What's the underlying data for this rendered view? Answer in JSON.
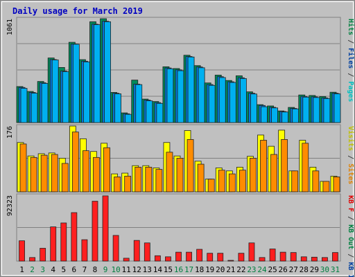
{
  "chart_data": [
    {
      "type": "bar",
      "title": "Daily usage for March 2019",
      "categories": [
        "1",
        "2",
        "3",
        "4",
        "5",
        "6",
        "7",
        "8",
        "9",
        "10",
        "11",
        "12",
        "13",
        "14",
        "15",
        "16",
        "17",
        "18",
        "19",
        "20",
        "21",
        "22",
        "23",
        "24",
        "25",
        "26",
        "27",
        "28",
        "29",
        "30",
        "31"
      ],
      "weekend_days": [
        "2",
        "3",
        "9",
        "10",
        "16",
        "17",
        "23",
        "24",
        "30",
        "31"
      ],
      "max_label": "1061",
      "ylim": [
        0,
        1061
      ],
      "axis_labels": [
        {
          "text": "Hits",
          "color": "#008040"
        },
        {
          "text": " / ",
          "color": "#404040"
        },
        {
          "text": "Files",
          "color": "#0040a0"
        },
        {
          "text": " / ",
          "color": "#404040"
        },
        {
          "text": "Pages",
          "color": "#00c0c0"
        }
      ],
      "series": [
        {
          "name": "Hits",
          "color": "#008a5a",
          "values": [
            368,
            318,
            420,
            660,
            563,
            820,
            643,
            1030,
            1061,
            308,
            99,
            434,
            240,
            215,
            570,
            552,
            688,
            582,
            405,
            485,
            430,
            478,
            314,
            183,
            170,
            119,
            155,
            282,
            277,
            266,
            310
          ]
        },
        {
          "name": "Files",
          "color": "#0078d8",
          "values": [
            359,
            308,
            407,
            644,
            526,
            802,
            627,
            1005,
            1035,
            300,
            90,
            393,
            230,
            204,
            558,
            539,
            675,
            568,
            389,
            469,
            417,
            458,
            300,
            175,
            156,
            113,
            145,
            267,
            263,
            252,
            300
          ]
        },
        {
          "name": "Pages",
          "color": "#00b0f0",
          "values": [
            350,
            300,
            400,
            640,
            520,
            800,
            620,
            1000,
            1030,
            294,
            84,
            388,
            222,
            196,
            550,
            530,
            670,
            560,
            380,
            460,
            410,
            450,
            292,
            162,
            150,
            108,
            140,
            260,
            256,
            246,
            294
          ]
        }
      ]
    },
    {
      "type": "bar",
      "max_label": "176",
      "ylim": [
        0,
        176
      ],
      "axis_labels": [
        {
          "text": "Visits",
          "color": "#c0c000"
        },
        {
          "text": " / ",
          "color": "#404040"
        },
        {
          "text": "Sites",
          "color": "#e08000"
        }
      ],
      "series": [
        {
          "name": "Visits",
          "color": "#ffff00",
          "values": [
            132,
            96,
            102,
            104,
            90,
            176,
            142,
            108,
            130,
            48,
            50,
            70,
            70,
            64,
            132,
            96,
            164,
            82,
            34,
            64,
            56,
            66,
            95,
            152,
            122,
            165,
            56,
            138,
            66,
            28,
            42
          ]
        },
        {
          "name": "Sites",
          "color": "#ff8c00",
          "values": [
            128,
            92,
            98,
            100,
            76,
            160,
            110,
            92,
            118,
            40,
            42,
            66,
            66,
            60,
            106,
            90,
            140,
            74,
            34,
            58,
            48,
            58,
            90,
            138,
            100,
            140,
            56,
            130,
            56,
            28,
            40
          ]
        }
      ]
    },
    {
      "type": "bar",
      "max_label": "92323",
      "ylim": [
        0,
        92323
      ],
      "axis_labels": [
        {
          "text": "KB F",
          "color": "#e00000"
        },
        {
          "text": " / ",
          "color": "#404040"
        },
        {
          "text": "KB Out",
          "color": "#008040"
        },
        {
          "text": " / ",
          "color": "#404040"
        },
        {
          "text": "KB In",
          "color": "#0040a0"
        }
      ],
      "series": [
        {
          "name": "KB F",
          "color": "#ff1f1f",
          "values": [
            28500,
            5000,
            18000,
            48000,
            53500,
            68000,
            30000,
            84000,
            91500,
            36000,
            4000,
            29000,
            25500,
            7500,
            6000,
            12500,
            12500,
            16500,
            11000,
            11000,
            1000,
            11000,
            25500,
            5000,
            17000,
            12500,
            12000,
            6000,
            5500,
            5000,
            12000
          ]
        }
      ]
    }
  ]
}
